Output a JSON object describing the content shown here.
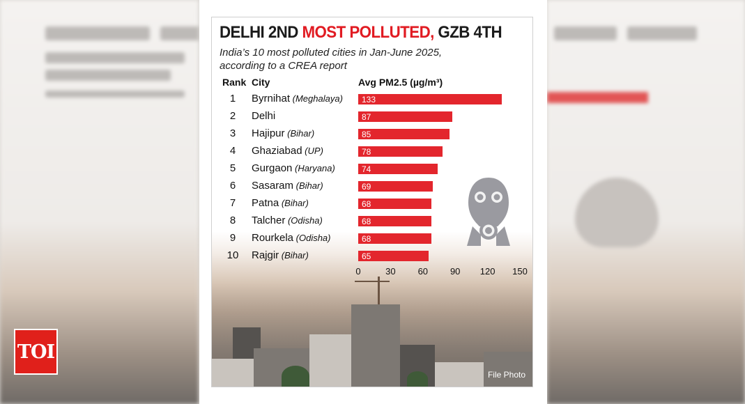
{
  "badge": {
    "text": "TOI"
  },
  "title": {
    "part1": "DELHI 2ND ",
    "part2": "MOST POLLUTED,",
    "part3": " GZB 4TH"
  },
  "subtitle": "India’s 10 most polluted cities in Jan-June 2025, according to a CREA report",
  "headers": {
    "rank": "Rank",
    "city": "City",
    "value": "Avg PM2.5 (µg/m³)"
  },
  "credit": "File Photo",
  "colors": {
    "bar": "#e3262d",
    "title_accent": "#e11b22",
    "badge": "#e0201b"
  },
  "icon": "gas-mask-icon",
  "chart_data": {
    "type": "bar",
    "orientation": "horizontal",
    "title": "DELHI 2ND MOST POLLUTED, GZB 4TH",
    "subtitle": "India’s 10 most polluted cities in Jan-June 2025, according to a CREA report",
    "ylabel": "City",
    "xlabel": "Avg PM2.5 (µg/m³)",
    "xlim": [
      0,
      150
    ],
    "xticks": [
      0,
      30,
      60,
      90,
      120,
      150
    ],
    "grid": false,
    "rows": [
      {
        "rank": "1",
        "city": "Byrnihat",
        "state": "(Meghalaya)",
        "value": 133
      },
      {
        "rank": "2",
        "city": "Delhi",
        "state": "",
        "value": 87
      },
      {
        "rank": "3",
        "city": "Hajipur",
        "state": "(Bihar)",
        "value": 85
      },
      {
        "rank": "4",
        "city": "Ghaziabad",
        "state": "(UP)",
        "value": 78
      },
      {
        "rank": "5",
        "city": "Gurgaon",
        "state": "(Haryana)",
        "value": 74
      },
      {
        "rank": "6",
        "city": "Sasaram",
        "state": "(Bihar)",
        "value": 69
      },
      {
        "rank": "7",
        "city": "Patna",
        "state": "(Bihar)",
        "value": 68
      },
      {
        "rank": "8",
        "city": "Talcher",
        "state": "(Odisha)",
        "value": 68
      },
      {
        "rank": "9",
        "city": "Rourkela",
        "state": "(Odisha)",
        "value": 68
      },
      {
        "rank": "10",
        "city": "Rajgir",
        "state": "(Bihar)",
        "value": 65
      }
    ]
  }
}
